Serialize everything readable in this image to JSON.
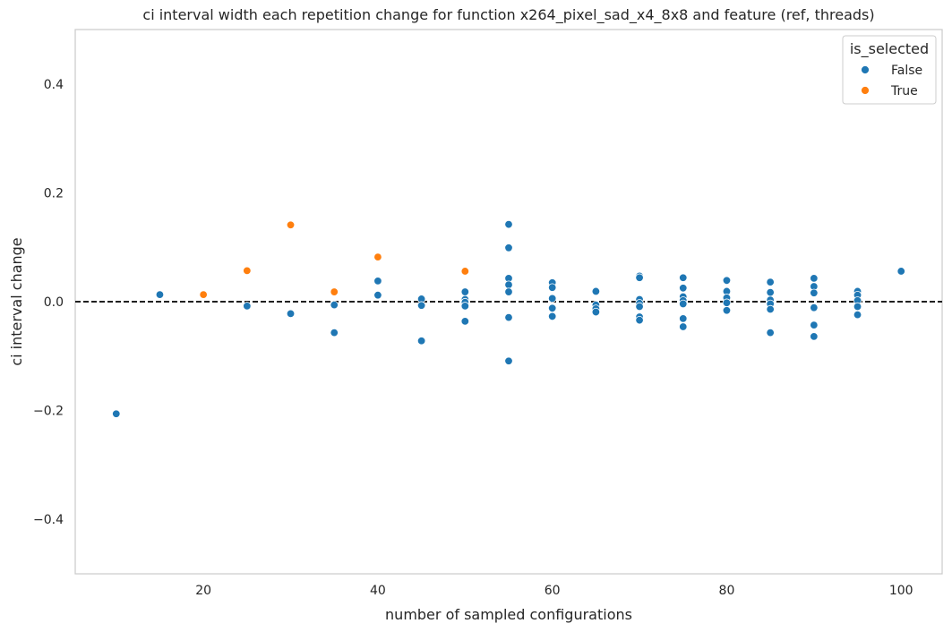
{
  "chart_data": {
    "type": "scatter",
    "title": "ci interval width each repetition change for function x264_pixel_sad_x4_8x8 and feature (ref, threads)",
    "xlabel": "number of sampled configurations",
    "ylabel": "ci interval change",
    "xlim": [
      5.3,
      104.7
    ],
    "ylim": [
      -0.5,
      0.5
    ],
    "xticks": [
      20,
      40,
      60,
      80,
      100
    ],
    "yticks": [
      -0.4,
      -0.2,
      0.0,
      0.2,
      0.4
    ],
    "ytick_labels": [
      "−0.4",
      "−0.2",
      "0.0",
      "0.2",
      "0.4"
    ],
    "xtick_labels": [
      "20",
      "40",
      "60",
      "80",
      "100"
    ],
    "grid": false,
    "reference_line": {
      "y": 0.0,
      "style": "dashed",
      "color": "#000000"
    },
    "legend": {
      "title": "is_selected",
      "position": "top-right",
      "entries": [
        {
          "label": "False",
          "color": "#1f77b4"
        },
        {
          "label": "True",
          "color": "#ff7f0e"
        }
      ]
    },
    "series": [
      {
        "name": "False",
        "color": "#1f77b4",
        "points": [
          [
            10,
            -0.206
          ],
          [
            15,
            0.013
          ],
          [
            25,
            -0.008
          ],
          [
            30,
            -0.022
          ],
          [
            35,
            -0.006
          ],
          [
            35,
            -0.057
          ],
          [
            40,
            0.038
          ],
          [
            40,
            0.012
          ],
          [
            45,
            0.005
          ],
          [
            45,
            -0.007
          ],
          [
            45,
            -0.072
          ],
          [
            50,
            0.018
          ],
          [
            50,
            0.004
          ],
          [
            50,
            -0.001
          ],
          [
            50,
            -0.008
          ],
          [
            50,
            -0.036
          ],
          [
            55,
            0.142
          ],
          [
            55,
            0.099
          ],
          [
            55,
            0.043
          ],
          [
            55,
            0.031
          ],
          [
            55,
            0.018
          ],
          [
            55,
            -0.029
          ],
          [
            55,
            -0.109
          ],
          [
            60,
            0.035
          ],
          [
            60,
            0.026
          ],
          [
            60,
            0.006
          ],
          [
            60,
            -0.012
          ],
          [
            60,
            -0.027
          ],
          [
            65,
            0.019
          ],
          [
            65,
            -0.006
          ],
          [
            65,
            -0.013
          ],
          [
            65,
            -0.019
          ],
          [
            70,
            0.047
          ],
          [
            70,
            0.044
          ],
          [
            70,
            0.004
          ],
          [
            70,
            -0.003
          ],
          [
            70,
            -0.009
          ],
          [
            70,
            -0.028
          ],
          [
            70,
            -0.034
          ],
          [
            75,
            0.044
          ],
          [
            75,
            0.025
          ],
          [
            75,
            0.009
          ],
          [
            75,
            0.002
          ],
          [
            75,
            -0.004
          ],
          [
            75,
            -0.031
          ],
          [
            75,
            -0.046
          ],
          [
            80,
            0.039
          ],
          [
            80,
            0.019
          ],
          [
            80,
            0.007
          ],
          [
            80,
            -0.002
          ],
          [
            80,
            -0.016
          ],
          [
            85,
            0.036
          ],
          [
            85,
            0.017
          ],
          [
            85,
            0.003
          ],
          [
            85,
            -0.004
          ],
          [
            85,
            -0.014
          ],
          [
            85,
            -0.057
          ],
          [
            90,
            0.043
          ],
          [
            90,
            0.028
          ],
          [
            90,
            0.016
          ],
          [
            90,
            -0.011
          ],
          [
            90,
            -0.043
          ],
          [
            90,
            -0.064
          ],
          [
            95,
            0.019
          ],
          [
            95,
            0.012
          ],
          [
            95,
            0.002
          ],
          [
            95,
            -0.009
          ],
          [
            95,
            -0.024
          ],
          [
            100,
            0.056
          ]
        ]
      },
      {
        "name": "True",
        "color": "#ff7f0e",
        "points": [
          [
            20,
            0.013
          ],
          [
            25,
            0.057
          ],
          [
            30,
            0.141
          ],
          [
            35,
            0.018
          ],
          [
            40,
            0.082
          ],
          [
            50,
            0.056
          ]
        ]
      }
    ]
  }
}
